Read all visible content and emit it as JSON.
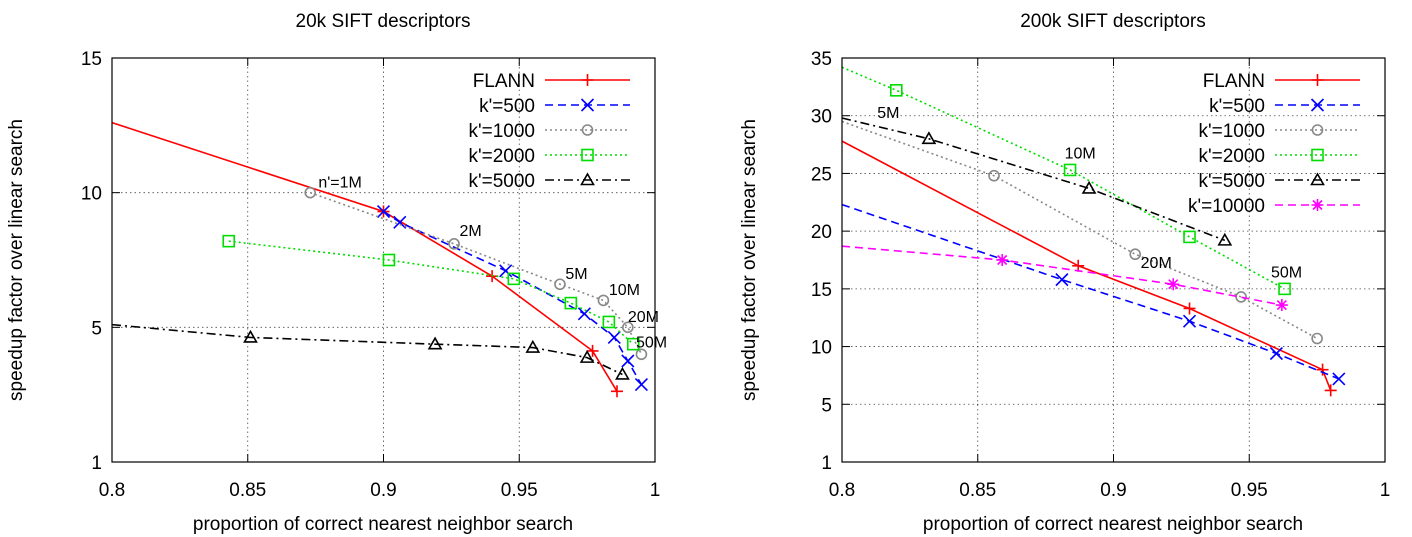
{
  "chart_data": [
    {
      "type": "line",
      "title": "20k SIFT descriptors",
      "xlabel": "proportion of correct nearest neighbor search",
      "ylabel": "speedup factor over linear search",
      "xlim": [
        0.8,
        1.0
      ],
      "ylim": [
        1,
        15
      ],
      "y_scale": "nonlinear (ticks 1, 5, 10, 15 evenly spaced)",
      "x_ticks": [
        "0.8",
        "0.85",
        "0.9",
        "0.95",
        "1"
      ],
      "y_ticks": [
        "1",
        "5",
        "10",
        "15"
      ],
      "grid": true,
      "legend_position": "top-right",
      "series": [
        {
          "name": "FLANN",
          "color": "#ff0000",
          "dash": "solid",
          "marker": "plus",
          "x": [
            0.8,
            0.9,
            0.94,
            0.977,
            0.986
          ],
          "y": [
            12.6,
            9.3,
            6.9,
            4.3,
            3.1
          ]
        },
        {
          "name": "k'=500",
          "color": "#0000ff",
          "dash": "dashed",
          "marker": "x",
          "x": [
            0.9,
            0.906,
            0.945,
            0.974,
            0.985,
            0.99,
            0.995
          ],
          "y": [
            9.3,
            8.9,
            7.1,
            5.5,
            4.7,
            4.0,
            3.3
          ]
        },
        {
          "name": "k'=1000",
          "color": "#888888",
          "dash": "dotted",
          "marker": "circle",
          "x": [
            0.873,
            0.926,
            0.965,
            0.981,
            0.99,
            0.995
          ],
          "y": [
            10.0,
            8.1,
            6.6,
            6.0,
            5.0,
            4.2
          ]
        },
        {
          "name": "k'=2000",
          "color": "#00dd00",
          "dash": "dotted",
          "marker": "square",
          "x": [
            0.843,
            0.902,
            0.948,
            0.969,
            0.983,
            0.992
          ],
          "y": [
            8.2,
            7.5,
            6.8,
            5.9,
            5.2,
            4.5
          ]
        },
        {
          "name": "k'=5000",
          "color": "#000000",
          "dash": "dashdot",
          "marker": "triangle",
          "x": [
            0.8,
            0.851,
            0.919,
            0.955,
            0.975,
            0.988
          ],
          "y": [
            5.1,
            4.7,
            4.5,
            4.4,
            4.1,
            3.6
          ]
        }
      ],
      "annotations": [
        {
          "text": "n'=1M",
          "x": 0.876,
          "y": 10.2
        },
        {
          "text": "2M",
          "x": 0.928,
          "y": 8.4
        },
        {
          "text": "5M",
          "x": 0.967,
          "y": 6.8
        },
        {
          "text": "10M",
          "x": 0.983,
          "y": 6.2
        },
        {
          "text": "20M",
          "x": 0.99,
          "y": 5.2
        },
        {
          "text": "50M",
          "x": 0.993,
          "y": 4.4
        }
      ]
    },
    {
      "type": "line",
      "title": "200k SIFT descriptors",
      "xlabel": "proportion of correct nearest neighbor search",
      "ylabel": "speedup factor over linear search",
      "xlim": [
        0.8,
        1.0
      ],
      "ylim": [
        1,
        35
      ],
      "y_scale": "nonlinear (1 to 5 compressed, 5 to 35 linear)",
      "x_ticks": [
        "0.8",
        "0.85",
        "0.9",
        "0.95",
        "1"
      ],
      "y_ticks": [
        "1",
        "5",
        "10",
        "15",
        "20",
        "25",
        "30",
        "35"
      ],
      "grid": true,
      "legend_position": "top-right",
      "series": [
        {
          "name": "FLANN",
          "color": "#ff0000",
          "dash": "solid",
          "marker": "plus",
          "x": [
            0.8,
            0.887,
            0.928,
            0.977,
            0.98
          ],
          "y": [
            27.8,
            17.0,
            13.3,
            8.0,
            6.2
          ]
        },
        {
          "name": "k'=500",
          "color": "#0000ff",
          "dash": "dashed",
          "marker": "x",
          "x": [
            0.8,
            0.881,
            0.928,
            0.96,
            0.983
          ],
          "y": [
            22.3,
            15.8,
            12.2,
            9.4,
            7.2
          ]
        },
        {
          "name": "k'=1000",
          "color": "#888888",
          "dash": "dotted",
          "marker": "circle",
          "x": [
            0.8,
            0.856,
            0.908,
            0.947,
            0.975
          ],
          "y": [
            29.5,
            24.8,
            18.0,
            14.3,
            10.7
          ]
        },
        {
          "name": "k'=2000",
          "color": "#00dd00",
          "dash": "dotted",
          "marker": "square",
          "x": [
            0.8,
            0.82,
            0.884,
            0.928,
            0.963
          ],
          "y": [
            34.2,
            32.2,
            25.3,
            19.5,
            15.0
          ]
        },
        {
          "name": "k'=5000",
          "color": "#000000",
          "dash": "dashdot",
          "marker": "triangle",
          "x": [
            0.8,
            0.832,
            0.891,
            0.941
          ],
          "y": [
            29.8,
            28.0,
            23.7,
            19.2
          ]
        },
        {
          "name": "k'=10000",
          "color": "#ff00ff",
          "dash": "dashed",
          "marker": "star",
          "x": [
            0.8,
            0.859,
            0.922,
            0.962
          ],
          "y": [
            18.7,
            17.5,
            15.4,
            13.6
          ]
        }
      ],
      "annotations": [
        {
          "text": "5M",
          "x": 0.813,
          "y": 29.8
        },
        {
          "text": "10M",
          "x": 0.882,
          "y": 26.3
        },
        {
          "text": "20M",
          "x": 0.91,
          "y": 16.8
        },
        {
          "text": "50M",
          "x": 0.958,
          "y": 16.0
        }
      ]
    }
  ]
}
